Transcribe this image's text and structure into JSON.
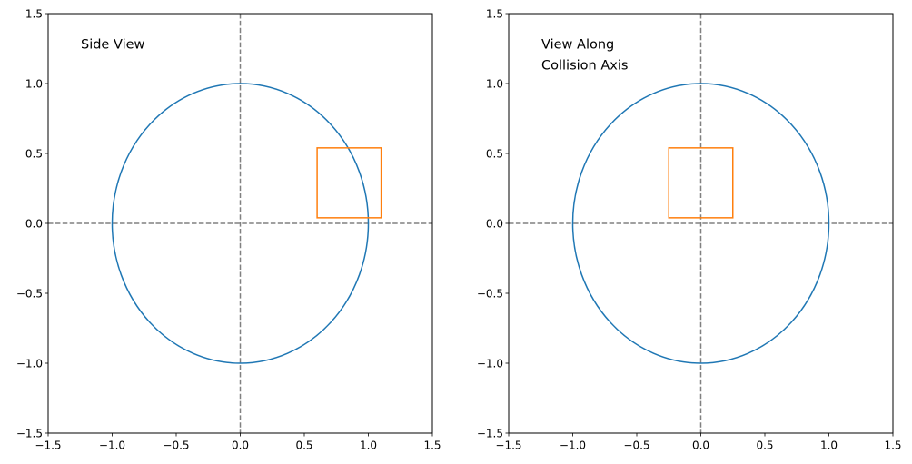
{
  "chart_data": [
    {
      "type": "line",
      "title": "",
      "xlabel": "",
      "ylabel": "",
      "xlim": [
        -1.5,
        1.5
      ],
      "ylim": [
        -1.5,
        1.5
      ],
      "grid": false,
      "xticks": [
        -1.5,
        -1.0,
        -0.5,
        0.0,
        0.5,
        1.0,
        1.5
      ],
      "yticks": [
        -1.5,
        -1.0,
        -0.5,
        0.0,
        0.5,
        1.0,
        1.5
      ],
      "tick_labels": [
        "−1.5",
        "−1.0",
        "−0.5",
        "0.0",
        "0.5",
        "1.0",
        "1.5"
      ],
      "annotation": [
        "Side View"
      ],
      "circle": {
        "center": [
          0,
          0
        ],
        "radius": 1.0,
        "color": "#1f77b4"
      },
      "rectangle": {
        "x": [
          0.6,
          1.1
        ],
        "y": [
          0.04,
          0.54
        ],
        "color": "#ff7f0e"
      },
      "reference_lines": {
        "x": 0,
        "y": 0,
        "style": "dashed",
        "color": "#808080"
      }
    },
    {
      "type": "line",
      "title": "",
      "xlabel": "",
      "ylabel": "",
      "xlim": [
        -1.5,
        1.5
      ],
      "ylim": [
        -1.5,
        1.5
      ],
      "grid": false,
      "xticks": [
        -1.5,
        -1.0,
        -0.5,
        0.0,
        0.5,
        1.0,
        1.5
      ],
      "yticks": [
        -1.5,
        -1.0,
        -0.5,
        0.0,
        0.5,
        1.0,
        1.5
      ],
      "tick_labels": [
        "−1.5",
        "−1.0",
        "−0.5",
        "0.0",
        "0.5",
        "1.0",
        "1.5"
      ],
      "annotation": [
        "View Along",
        "Collision Axis"
      ],
      "circle": {
        "center": [
          0,
          0
        ],
        "radius": 1.0,
        "color": "#1f77b4"
      },
      "rectangle": {
        "x": [
          -0.25,
          0.25
        ],
        "y": [
          0.04,
          0.54
        ],
        "color": "#ff7f0e"
      },
      "reference_lines": {
        "x": 0,
        "y": 0,
        "style": "dashed",
        "color": "#808080"
      }
    }
  ]
}
